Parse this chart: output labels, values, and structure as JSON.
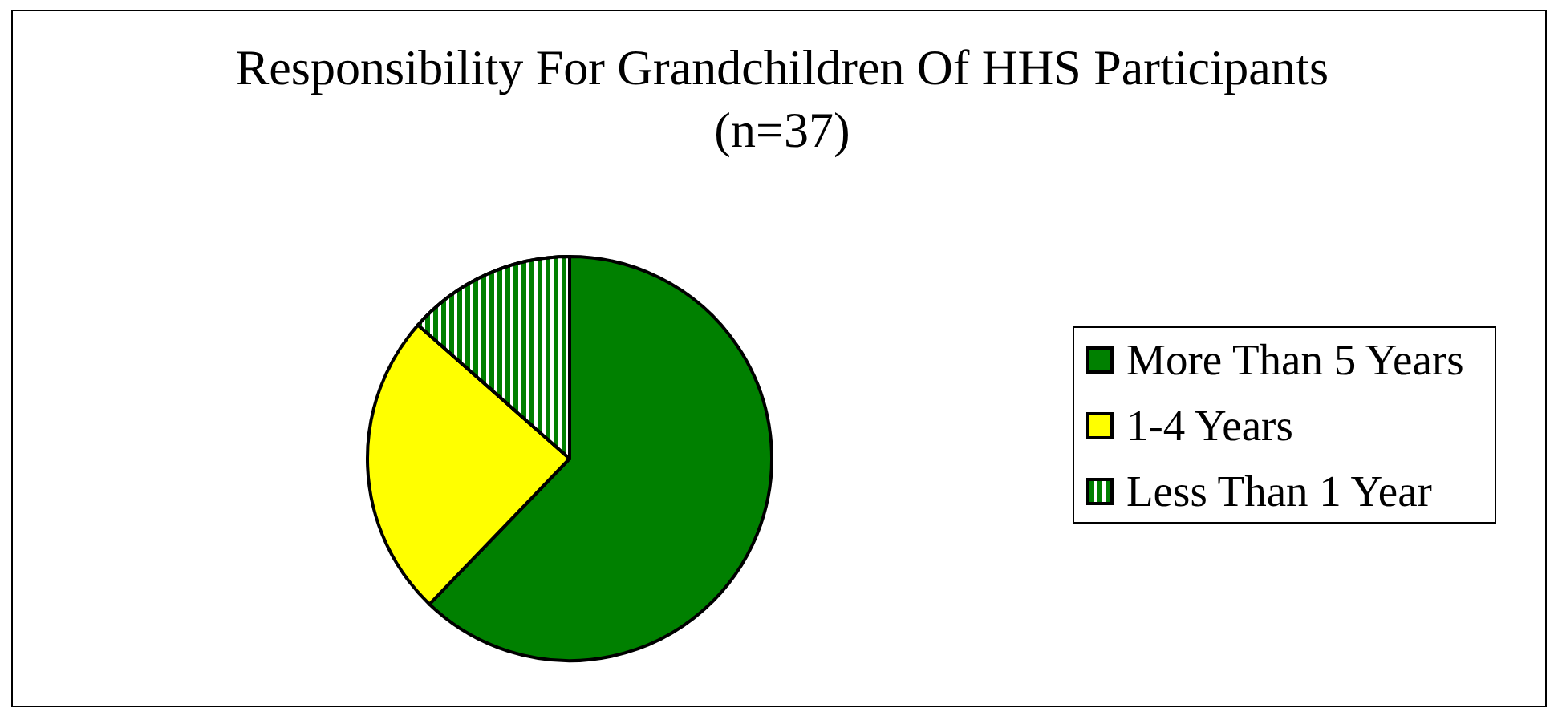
{
  "chart_data": {
    "type": "pie",
    "title": "Responsibility For Grandchildren Of HHS Participants",
    "subtitle": "(n=37)",
    "categories": [
      "More Than 5 Years",
      "1-4 Years",
      "Less Than 1 Year"
    ],
    "values": [
      62.2,
      24.3,
      13.5
    ],
    "colors": [
      "#008000",
      "#ffff00",
      "#008000"
    ],
    "legend": "right"
  }
}
